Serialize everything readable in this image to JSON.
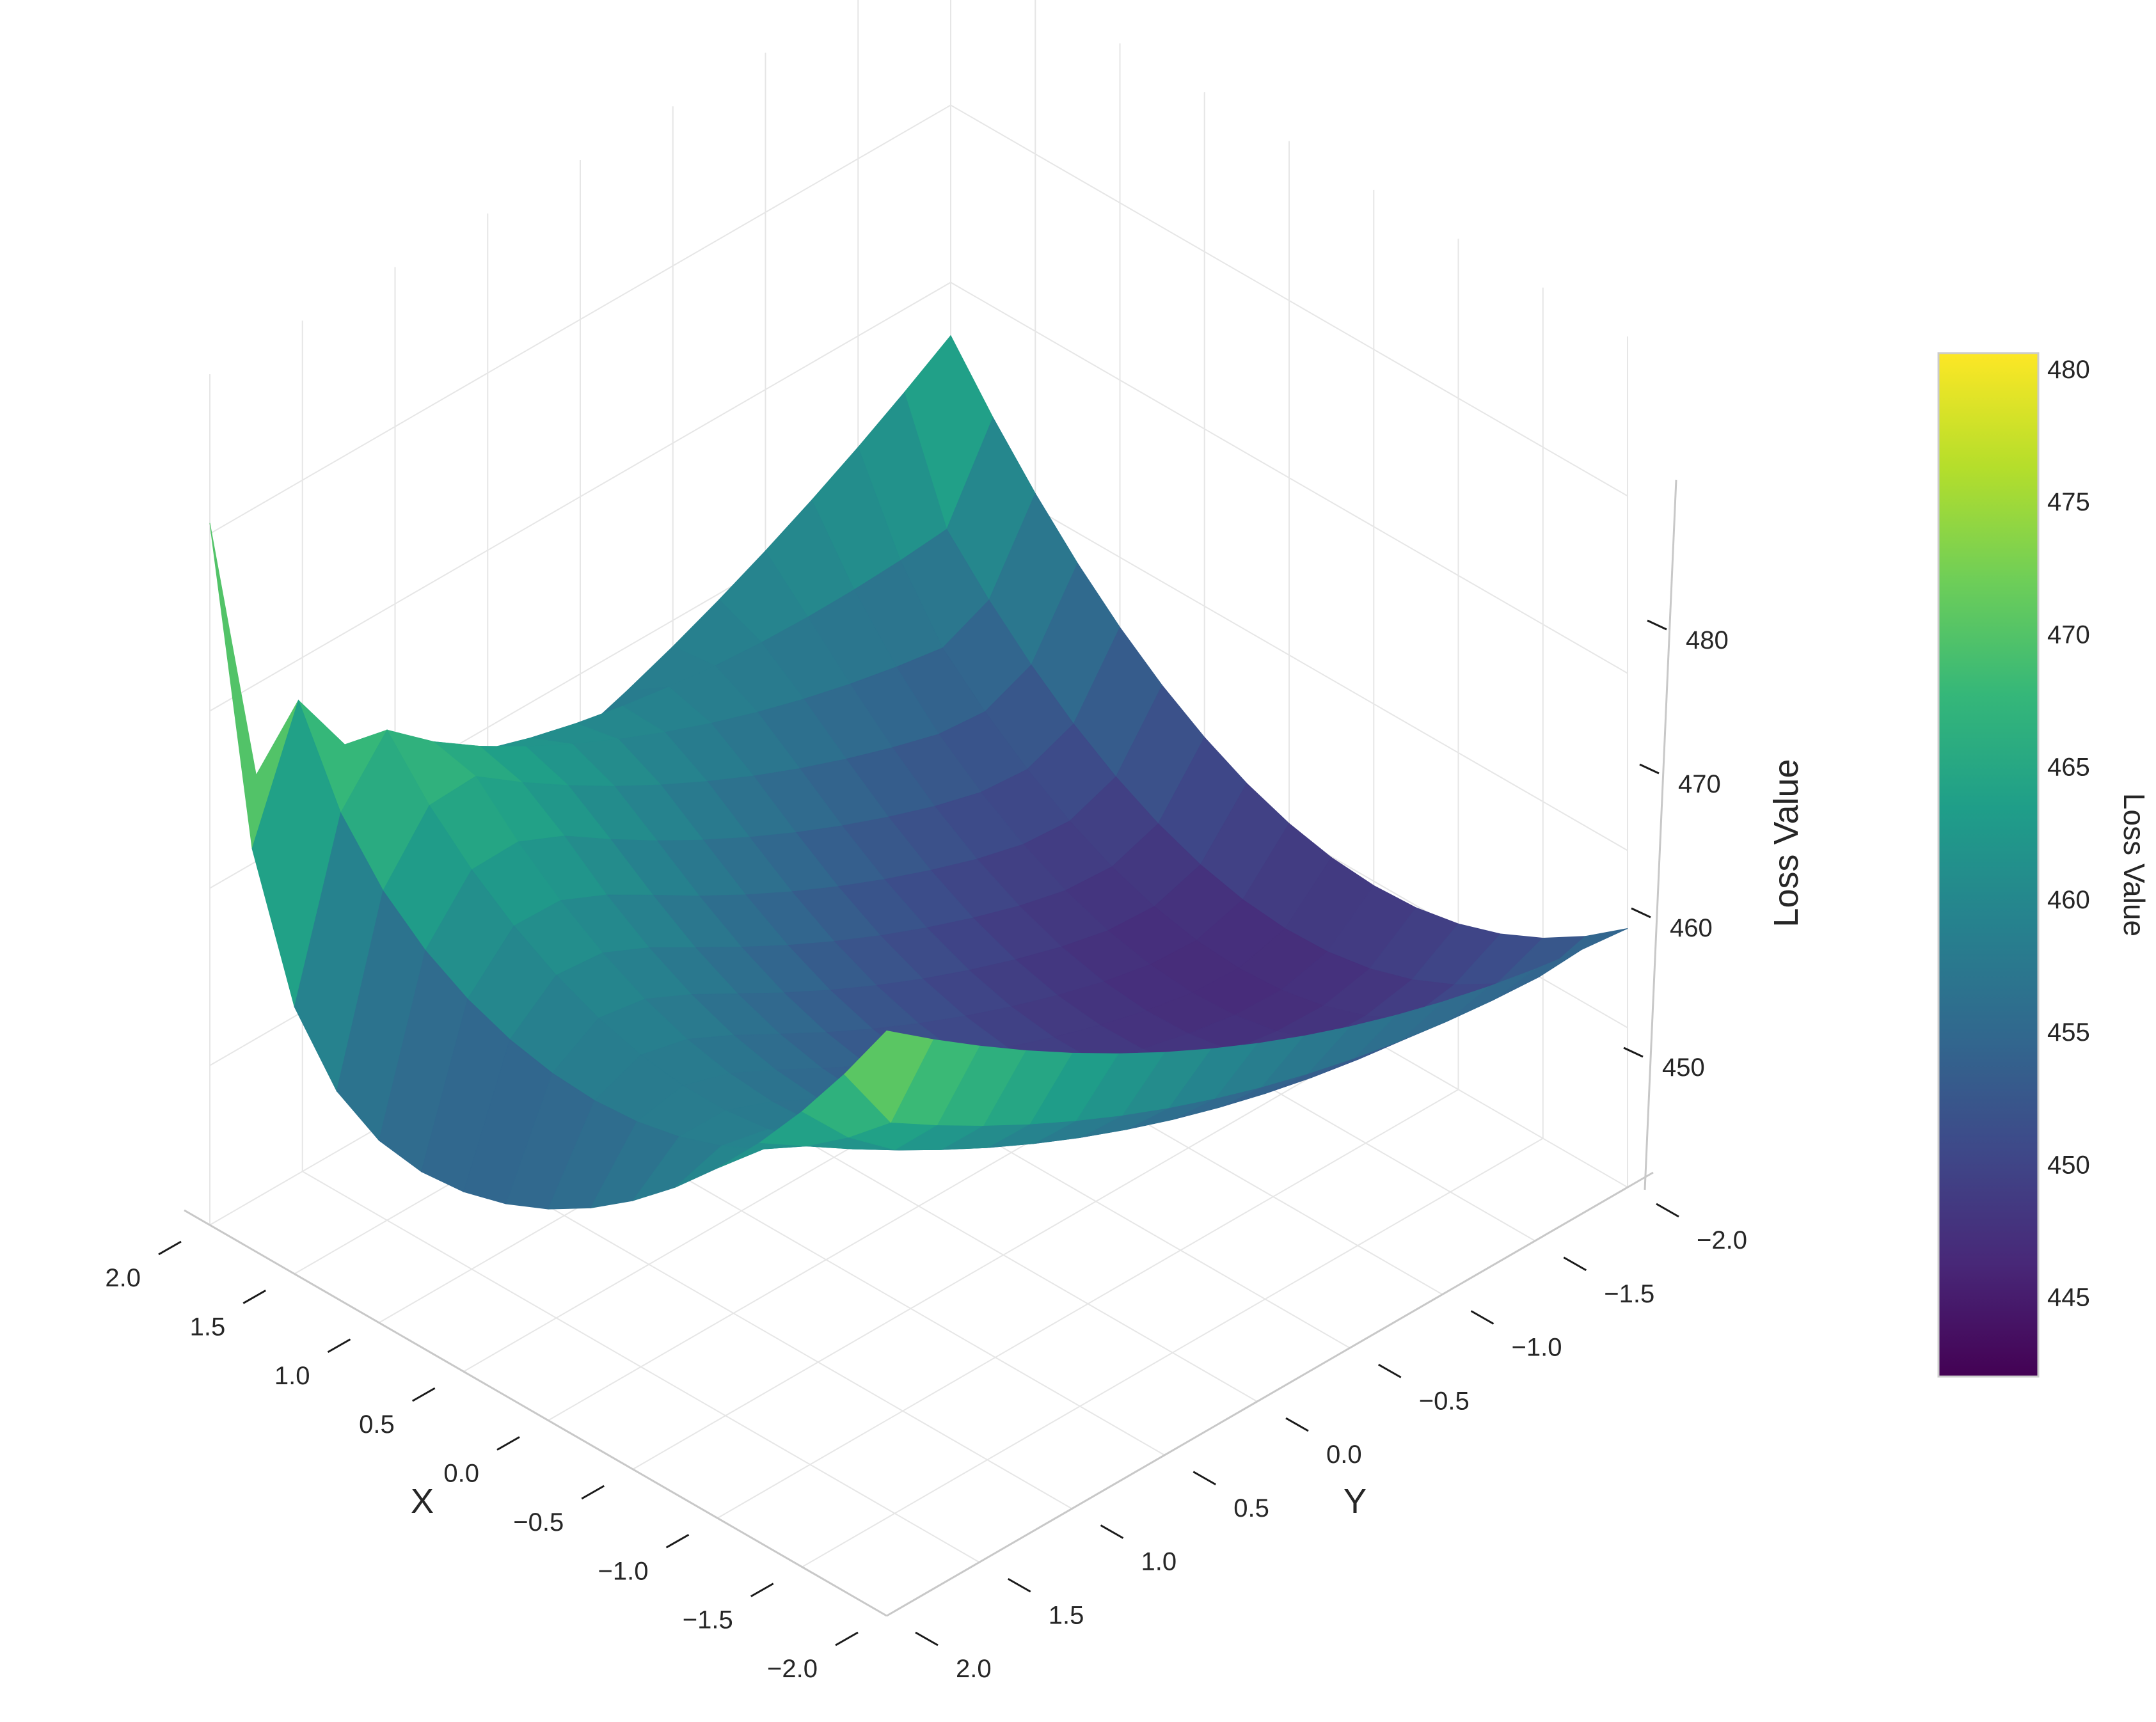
{
  "chart_data": {
    "type": "surface3d",
    "title": "",
    "xlabel": "X",
    "ylabel": "Y",
    "zlabel": "Loss Value",
    "x_ticks": [
      "2.0",
      "1.5",
      "1.0",
      "0.5",
      "0.0",
      "−0.5",
      "−1.0",
      "−1.5",
      "−2.0"
    ],
    "y_ticks": [
      "−2.0",
      "−1.5",
      "−1.0",
      "−0.5",
      "0.0",
      "0.5",
      "1.0",
      "1.5",
      "2.0"
    ],
    "z_ticks": [
      "450",
      "460",
      "470",
      "480"
    ],
    "x_range": [
      -2,
      2
    ],
    "y_range": [
      -2,
      2
    ],
    "z_range": [
      441,
      489
    ],
    "grid": true,
    "colormap": "viridis",
    "surface": {
      "x_samples": 17,
      "y_samples": 17,
      "corner_values": {
        "x_2_y_2": 480.6,
        "x_2_y_-2": 467.0,
        "x_-2_y_2": 474.0,
        "x_-2_y_-2": 455.6
      },
      "minimum": {
        "x": -1.75,
        "y": -2.0,
        "z": 442.0
      }
    },
    "colorbar": {
      "label": "Loss Value",
      "ticks": [
        "445",
        "450",
        "455",
        "460",
        "465",
        "470",
        "475",
        "480"
      ],
      "tick_values": [
        445,
        450,
        455,
        460,
        465,
        470,
        475,
        480
      ],
      "range": [
        442.0,
        480.6
      ],
      "colors": [
        "#440154",
        "#482878",
        "#3e4989",
        "#31688e",
        "#26828e",
        "#1f9e89",
        "#35b779",
        "#6ece58",
        "#b5de2b",
        "#fde725"
      ]
    }
  }
}
